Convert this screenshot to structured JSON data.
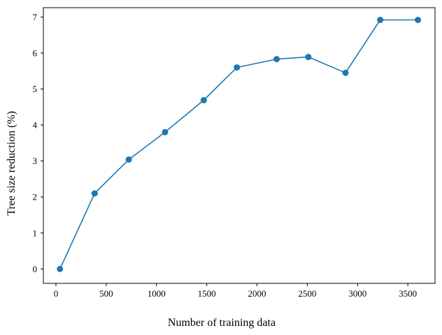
{
  "chart_data": {
    "type": "line",
    "title": "",
    "xlabel": "Number of training data",
    "ylabel": "Tree size reduction (%)",
    "xlim": [
      -125,
      3770
    ],
    "ylim": [
      -0.4,
      7.26
    ],
    "xticks": [
      0,
      500,
      1000,
      1500,
      2000,
      2500,
      3000,
      3500
    ],
    "yticks": [
      0,
      1,
      2,
      3,
      4,
      5,
      6,
      7
    ],
    "grid": false,
    "series": [
      {
        "color": "#1f77b4",
        "marker": "circle",
        "points": [
          {
            "x": 40,
            "y": 0.0
          },
          {
            "x": 385,
            "y": 2.1
          },
          {
            "x": 725,
            "y": 3.04
          },
          {
            "x": 1085,
            "y": 3.8
          },
          {
            "x": 1470,
            "y": 4.69
          },
          {
            "x": 1800,
            "y": 5.6
          },
          {
            "x": 2195,
            "y": 5.83
          },
          {
            "x": 2510,
            "y": 5.89
          },
          {
            "x": 2880,
            "y": 5.45
          },
          {
            "x": 3225,
            "y": 6.92
          },
          {
            "x": 3600,
            "y": 6.92
          }
        ]
      }
    ]
  }
}
